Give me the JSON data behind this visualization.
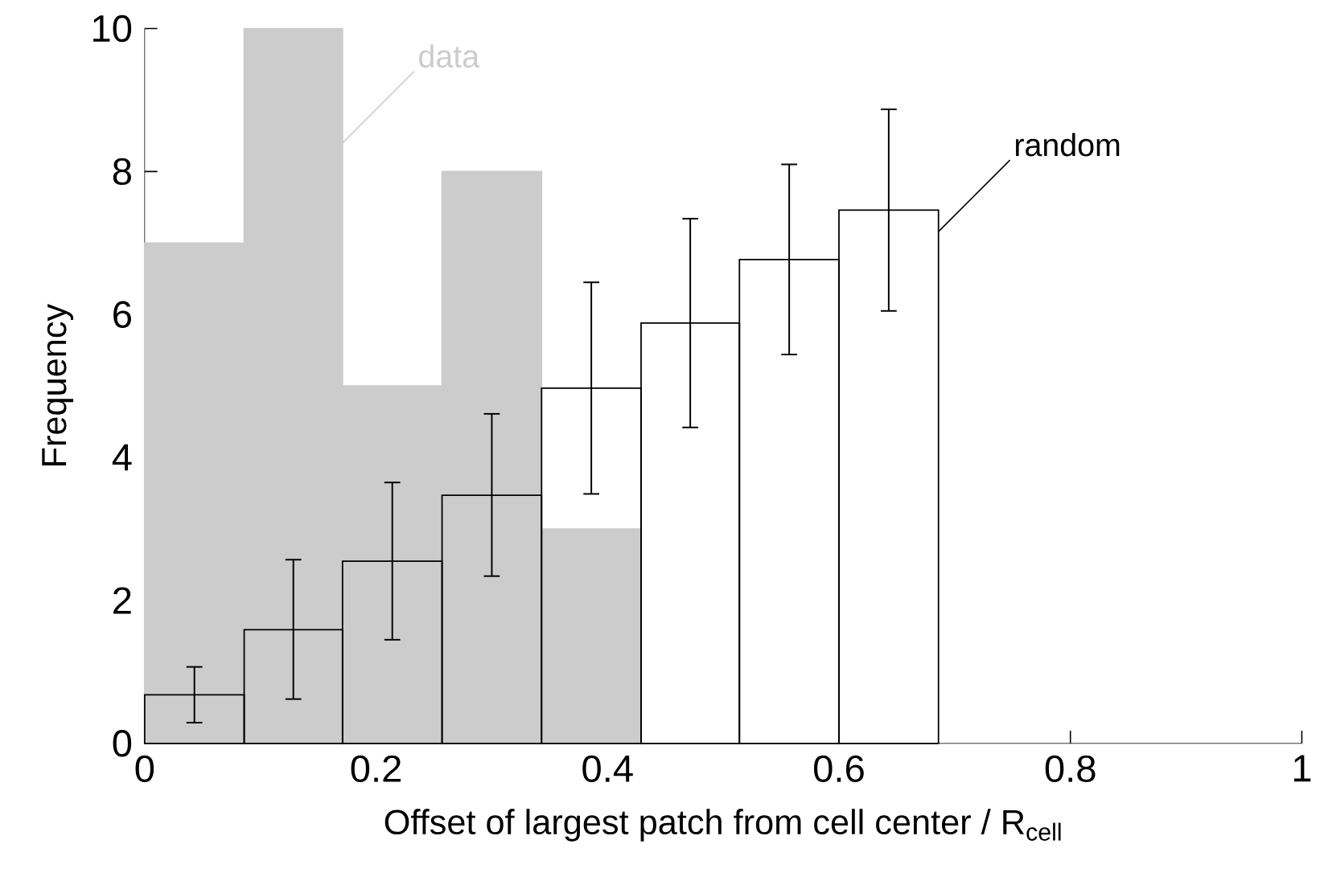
{
  "chart_data": {
    "type": "histogram",
    "xlabel": "Offset of largest patch from cell center / R$_{cell}$",
    "ylabel": "Frequency",
    "bins": [
      0,
      0.086,
      0.171,
      0.257,
      0.343,
      0.429,
      0.514,
      0.6,
      0.686
    ],
    "series": [
      {
        "color": "#cccccc",
        "values": [
          7,
          10,
          5,
          8,
          3,
          null,
          null,
          null
        ]
      },
      {
        "color": "#000000",
        "values": [
          0.68,
          1.59,
          2.55,
          3.47,
          4.97,
          5.88,
          6.77,
          7.46
        ],
        "errors": [
          [
            0.29,
            1.07
          ],
          [
            0.62,
            2.57
          ],
          [
            1.45,
            3.65
          ],
          [
            2.34,
            4.61
          ],
          [
            3.49,
            6.45
          ],
          [
            4.42,
            7.34
          ],
          [
            5.44,
            8.1
          ],
          [
            6.05,
            8.87
          ]
        ]
      }
    ],
    "annotations": [
      {
        "text": "data",
        "x": 0.171,
        "y": 8.4
      },
      {
        "text": "random",
        "x": 0.686,
        "y": 7.16
      }
    ],
    "xlim": [
      0,
      1
    ],
    "ylim": [
      0,
      10
    ],
    "xticks": [
      0,
      0.2,
      0.4,
      0.6,
      0.8,
      1
    ],
    "yticks": [
      0,
      2,
      4,
      6,
      8,
      10
    ]
  }
}
